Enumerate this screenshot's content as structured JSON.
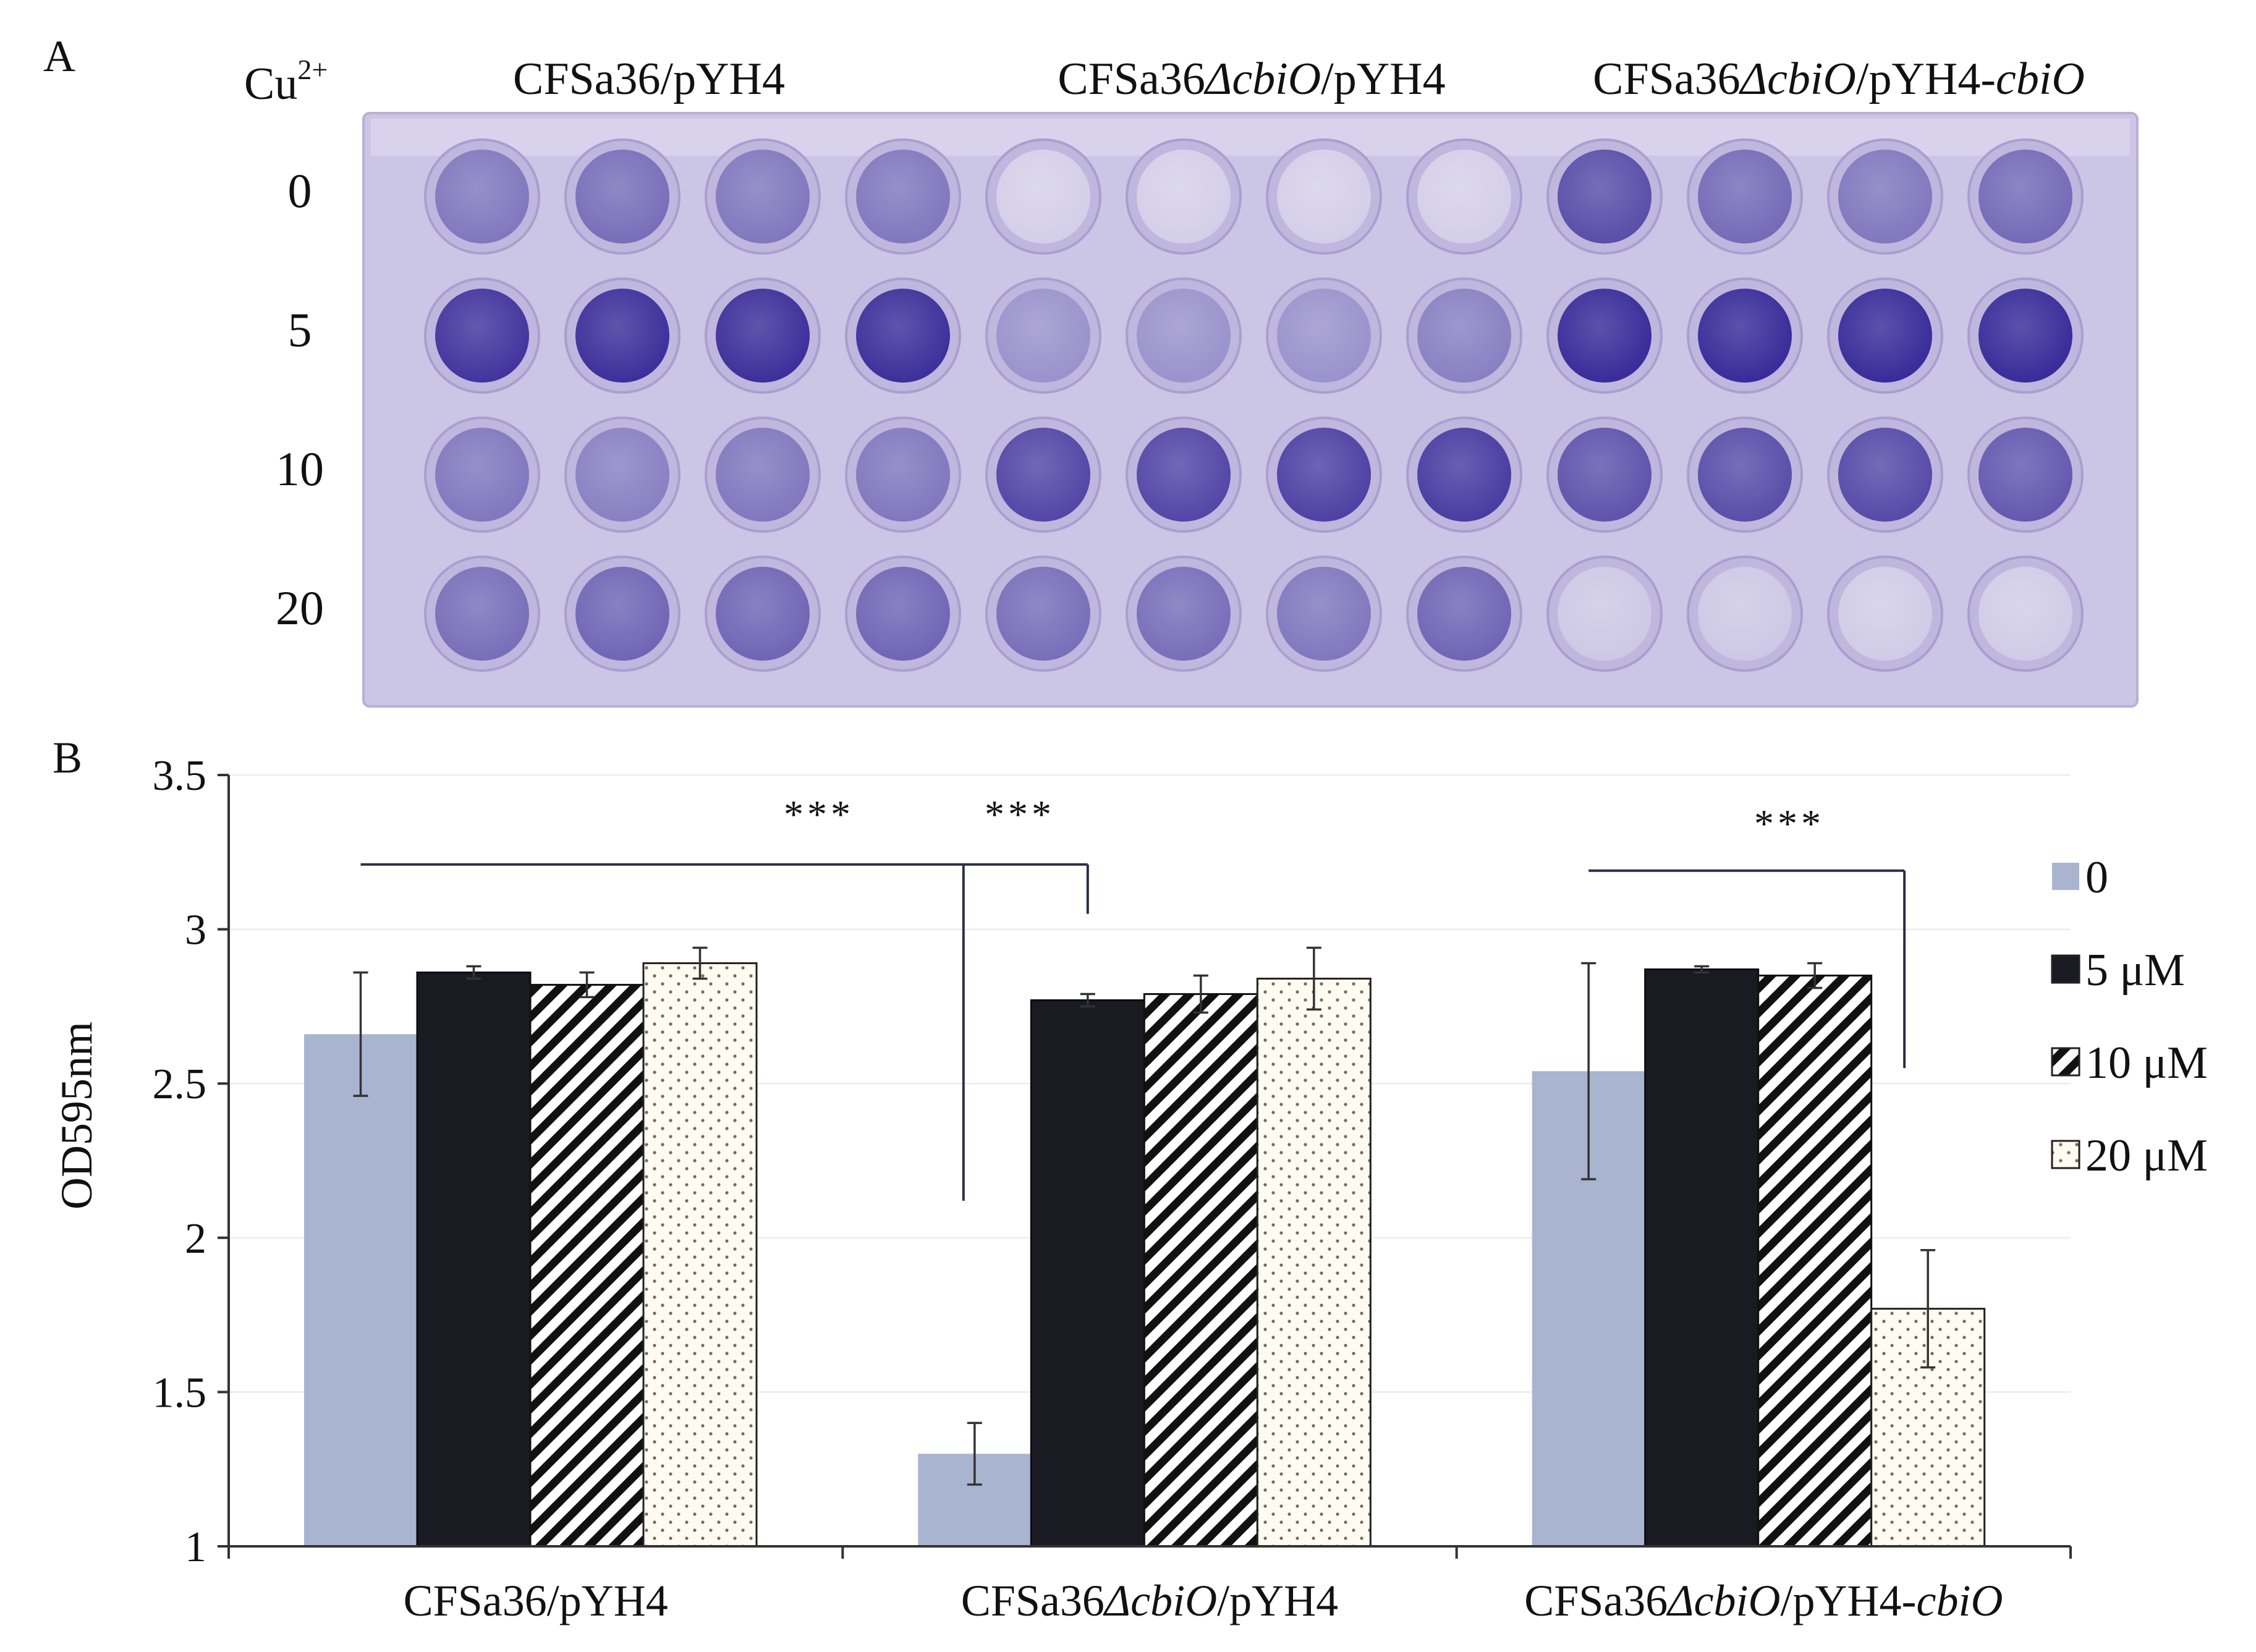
{
  "panel_a": {
    "label": "A",
    "row_header": "Cu",
    "row_header_sup": "2+",
    "rows": [
      "0",
      "5",
      "10",
      "20"
    ],
    "groups": [
      {
        "parts": [
          {
            "t": "CFSa36/pYH4",
            "i": false
          }
        ]
      },
      {
        "parts": [
          {
            "t": "CFSa36",
            "i": false
          },
          {
            "t": "ΔcbiO",
            "i": true
          },
          {
            "t": "/pYH4",
            "i": false
          }
        ]
      },
      {
        "parts": [
          {
            "t": "CFSa36",
            "i": false
          },
          {
            "t": "ΔcbiO",
            "i": true
          },
          {
            "t": "/pYH4-",
            "i": false
          },
          {
            "t": "cbiO",
            "i": true
          }
        ]
      }
    ],
    "well_intensity": [
      [
        0.55,
        0.6,
        0.55,
        0.55,
        0.06,
        0.06,
        0.06,
        0.06,
        0.78,
        0.62,
        0.55,
        0.62
      ],
      [
        0.92,
        0.95,
        0.95,
        0.95,
        0.4,
        0.4,
        0.4,
        0.5,
        0.97,
        0.97,
        0.97,
        0.97
      ],
      [
        0.55,
        0.5,
        0.55,
        0.55,
        0.82,
        0.82,
        0.85,
        0.88,
        0.75,
        0.78,
        0.8,
        0.72
      ],
      [
        0.6,
        0.65,
        0.65,
        0.65,
        0.6,
        0.6,
        0.55,
        0.65,
        0.1,
        0.1,
        0.08,
        0.08
      ]
    ]
  },
  "panel_b": {
    "label": "B",
    "colors": {
      "c0": "#a9b4d0",
      "c5": "#1a1a22",
      "hatch": "#111111",
      "dots": "#7a6a50",
      "axis": "#333333",
      "bracket": "#2b2f45"
    }
  },
  "chart_data": {
    "type": "bar",
    "title": "",
    "xlabel": "",
    "ylabel": "OD595nm",
    "ylim": [
      1,
      3.5
    ],
    "yticks": [
      "1",
      "1.5",
      "2",
      "2.5",
      "3",
      "3.5"
    ],
    "categories": [
      [
        {
          "t": "CFSa36/pYH4",
          "i": false
        }
      ],
      [
        {
          "t": "CFSa36",
          "i": false
        },
        {
          "t": "ΔcbiO",
          "i": true
        },
        {
          "t": "/pYH4",
          "i": false
        }
      ],
      [
        {
          "t": "CFSa36",
          "i": false
        },
        {
          "t": "ΔcbiO",
          "i": true
        },
        {
          "t": "/pYH4-",
          "i": false
        },
        {
          "t": "cbiO",
          "i": true
        }
      ]
    ],
    "series": [
      {
        "name": "0",
        "pattern": "solid-light",
        "values": [
          2.66,
          1.3,
          2.54
        ],
        "errors": [
          0.2,
          0.1,
          0.35
        ]
      },
      {
        "name": "5 μM",
        "pattern": "solid-dark",
        "values": [
          2.86,
          2.77,
          2.87
        ],
        "errors": [
          0.02,
          0.02,
          0.01
        ]
      },
      {
        "name": "10 μM",
        "pattern": "hatch",
        "values": [
          2.82,
          2.79,
          2.85
        ],
        "errors": [
          0.04,
          0.06,
          0.04
        ]
      },
      {
        "name": "20 μM",
        "pattern": "dots",
        "values": [
          2.89,
          2.84,
          1.77
        ],
        "errors": [
          0.05,
          0.1,
          0.19
        ]
      }
    ],
    "significance": [
      {
        "label": "***"
      },
      {
        "label": "***"
      },
      {
        "label": "***"
      }
    ],
    "legend_position": "right"
  }
}
